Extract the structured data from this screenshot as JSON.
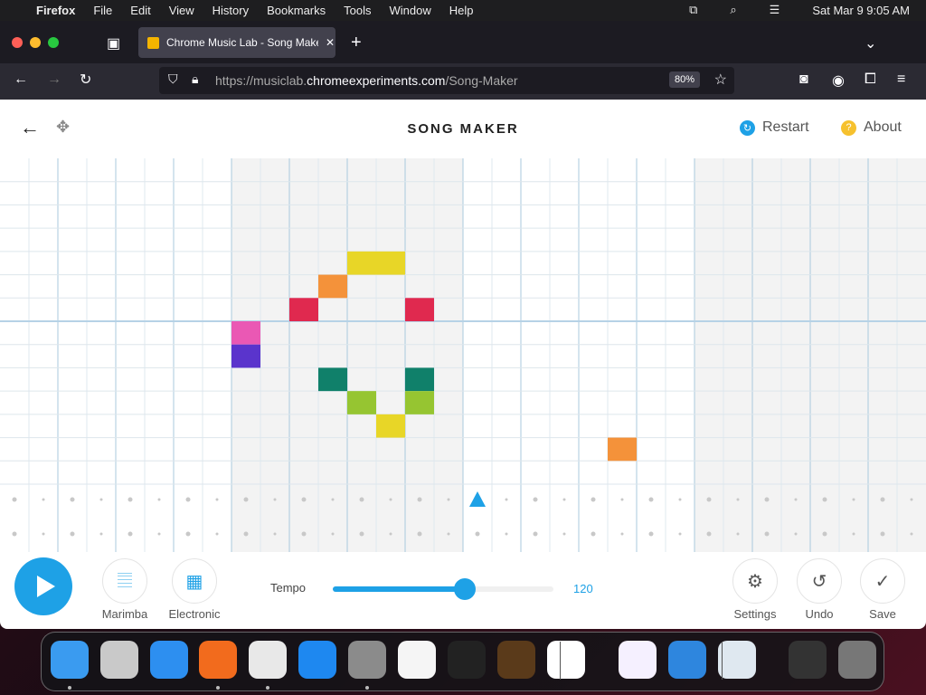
{
  "menubar": {
    "app": "Firefox",
    "items": [
      "File",
      "Edit",
      "View",
      "History",
      "Bookmarks",
      "Tools",
      "Window",
      "Help"
    ],
    "clock": "Sat Mar 9  9:05 AM"
  },
  "browser": {
    "tab_title": "Chrome Music Lab - Song Make",
    "url_prefix": "https://musiclab.",
    "url_domain": "chromeexperiments.com",
    "url_path": "/Song-Maker",
    "zoom": "80%"
  },
  "app": {
    "title": "SONG MAKER",
    "restart": "Restart",
    "about": "About",
    "grid": {
      "columns": 32,
      "melody_rows": 14,
      "percussion_rows": 2,
      "playhead_column": 16,
      "notes": [
        {
          "col": 12,
          "row": 4,
          "color": "#e8d627"
        },
        {
          "col": 13,
          "row": 4,
          "color": "#e8d627"
        },
        {
          "col": 11,
          "row": 5,
          "color": "#f4923a"
        },
        {
          "col": 10,
          "row": 6,
          "color": "#e0294f"
        },
        {
          "col": 14,
          "row": 6,
          "color": "#e0294f"
        },
        {
          "col": 8,
          "row": 7,
          "color": "#ea58b4"
        },
        {
          "col": 8,
          "row": 8,
          "color": "#5a34cc"
        },
        {
          "col": 11,
          "row": 9,
          "color": "#10806a"
        },
        {
          "col": 14,
          "row": 9,
          "color": "#10806a"
        },
        {
          "col": 12,
          "row": 10,
          "color": "#96c531"
        },
        {
          "col": 14,
          "row": 10,
          "color": "#96c531"
        },
        {
          "col": 13,
          "row": 11,
          "color": "#e8d627"
        },
        {
          "col": 21,
          "row": 12,
          "color": "#f4923a"
        }
      ]
    },
    "controls": {
      "instrument": "Marimba",
      "percussion": "Electronic",
      "tempo_label": "Tempo",
      "tempo": "120",
      "tempo_fraction": 0.6,
      "settings": "Settings",
      "undo": "Undo",
      "save": "Save",
      "accent": "#1ea1e6"
    }
  },
  "dock": [
    "finder",
    "launchpad",
    "safari",
    "firefox",
    "chrome",
    "app-store",
    "system-settings",
    "textedit",
    "terminal",
    "garageband",
    "vscode",
    "visual-studio",
    "weather",
    "preview",
    "screenshot",
    "trash"
  ]
}
